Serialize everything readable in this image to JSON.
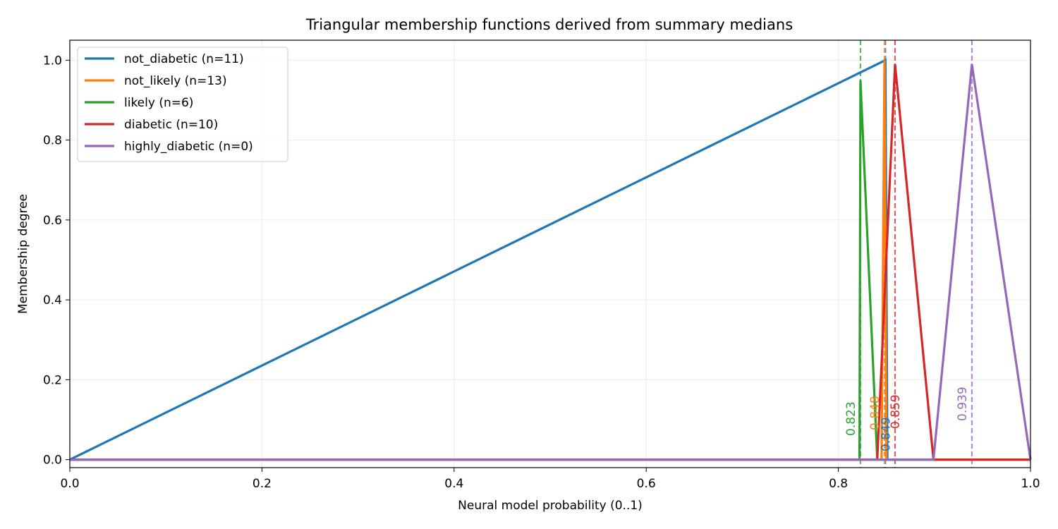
{
  "chart_data": {
    "type": "line",
    "title": "Triangular membership functions derived from summary medians",
    "xlabel": "Neural model probability (0..1)",
    "ylabel": "Membership degree",
    "xlim": [
      0.0,
      1.0
    ],
    "ylim": [
      -0.02,
      1.05
    ],
    "x_ticks": [
      "0.0",
      "0.2",
      "0.4",
      "0.6",
      "0.8",
      "1.0"
    ],
    "y_ticks": [
      "0.0",
      "0.2",
      "0.4",
      "0.6",
      "0.8",
      "1.0"
    ],
    "grid": true,
    "legend_position": "upper-left",
    "series": [
      {
        "name": "not_diabetic (n=11)",
        "color": "#1f77b4",
        "x": [
          0.0,
          0.849,
          0.851,
          1.0
        ],
        "y": [
          0.0,
          1.0,
          0.0,
          0.0
        ],
        "median": 0.849,
        "median_label": "0.849"
      },
      {
        "name": "not_likely (n=13)",
        "color": "#ff7f0e",
        "x": [
          0.0,
          0.845,
          0.848,
          0.85,
          1.0
        ],
        "y": [
          0.0,
          0.0,
          1.0,
          0.0,
          0.0
        ],
        "median": 0.848,
        "median_label": "0.848"
      },
      {
        "name": "likely (n=6)",
        "color": "#2ca02c",
        "x": [
          0.0,
          0.822,
          0.823,
          0.8405,
          1.0
        ],
        "y": [
          0.0,
          0.0,
          0.95,
          0.0,
          0.0
        ],
        "median": 0.823,
        "median_label": "0.823"
      },
      {
        "name": "diabetic (n=10)",
        "color": "#d62728",
        "x": [
          0.0,
          0.8405,
          0.859,
          0.899,
          1.0
        ],
        "y": [
          0.0,
          0.0,
          0.99,
          0.0,
          0.0
        ],
        "median": 0.859,
        "median_label": "0.859"
      },
      {
        "name": "highly_diabetic (n=0)",
        "color": "#9467bd",
        "x": [
          0.0,
          0.899,
          0.939,
          1.0
        ],
        "y": [
          0.0,
          0.0,
          0.99,
          0.0
        ],
        "median": 0.939,
        "median_label": "0.939"
      }
    ]
  }
}
